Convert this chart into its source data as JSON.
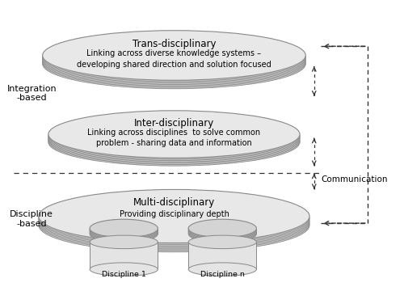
{
  "bg_color": "#ffffff",
  "ellipse_fill": "#e8e8e8",
  "ellipse_edge": "#888888",
  "ellipse_shadow": "#cccccc",
  "dashed_line_color": "#333333",
  "text_color": "#000000",
  "trans_title": "Trans-disciplinary",
  "trans_body": "Linking across diverse knowledge systems –\ndeveloping shared direction and solution focused",
  "inter_title": "Inter-disciplinary",
  "inter_body": "Linking across disciplines  to solve common\nproblem - sharing data and information",
  "multi_title": "Multi-disciplinary",
  "multi_body": "Providing disciplinary depth",
  "integration_label": "Integration\n-based",
  "discipline_label": "Discipline\n-based",
  "communication_label": "Communication",
  "disc1_label": "Discipline 1",
  "discn_label": "Discipline n"
}
